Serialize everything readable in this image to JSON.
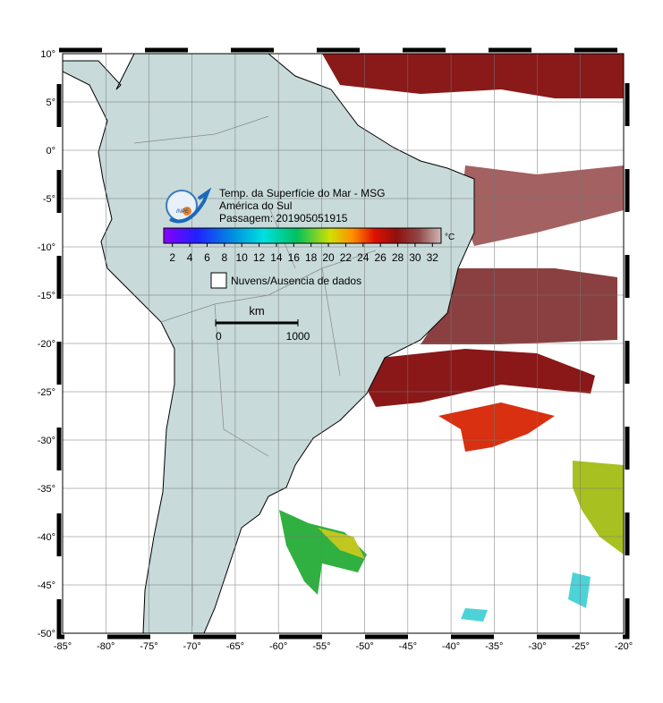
{
  "map": {
    "title_lines": [
      "Temp. da Superfície do Mar - MSG",
      "América do Sul",
      "Passagem: 201905051915"
    ],
    "logo_text": "INPE",
    "colorbar": {
      "range": [
        1,
        33
      ],
      "ticks": [
        2,
        4,
        6,
        8,
        10,
        12,
        14,
        16,
        18,
        20,
        22,
        24,
        26,
        28,
        30,
        32
      ],
      "unit": "°C"
    },
    "legend_text": "Nuvens/Ausencia de dados",
    "scale_bar": {
      "unit": "km",
      "ticks": [
        0,
        1000
      ]
    },
    "lat_ticks": [
      {
        "value": 10,
        "label": "10°"
      },
      {
        "value": 5,
        "label": "5°"
      },
      {
        "value": 0,
        "label": "0°"
      },
      {
        "value": -5,
        "label": "-5°"
      },
      {
        "value": -10,
        "label": "-10°"
      },
      {
        "value": -15,
        "label": "-15°"
      },
      {
        "value": -20,
        "label": "-20°"
      },
      {
        "value": -25,
        "label": "-25°"
      },
      {
        "value": -30,
        "label": "-30°"
      },
      {
        "value": -35,
        "label": "-35°"
      },
      {
        "value": -40,
        "label": "-40°"
      },
      {
        "value": -45,
        "label": "-45°"
      },
      {
        "value": -50,
        "label": "-50°"
      }
    ],
    "lon_ticks": [
      {
        "value": -85,
        "label": "-85°"
      },
      {
        "value": -80,
        "label": "-80°"
      },
      {
        "value": -75,
        "label": "-75°"
      },
      {
        "value": -70,
        "label": "-70°"
      },
      {
        "value": -65,
        "label": "-65°"
      },
      {
        "value": -60,
        "label": "-60°"
      },
      {
        "value": -55,
        "label": "-55°"
      },
      {
        "value": -50,
        "label": "-50°"
      },
      {
        "value": -45,
        "label": "-45°"
      },
      {
        "value": -40,
        "label": "-40°"
      },
      {
        "value": -35,
        "label": "-35°"
      },
      {
        "value": -30,
        "label": "-30°"
      },
      {
        "value": -25,
        "label": "-25°"
      },
      {
        "value": -20,
        "label": "-20°"
      }
    ]
  }
}
